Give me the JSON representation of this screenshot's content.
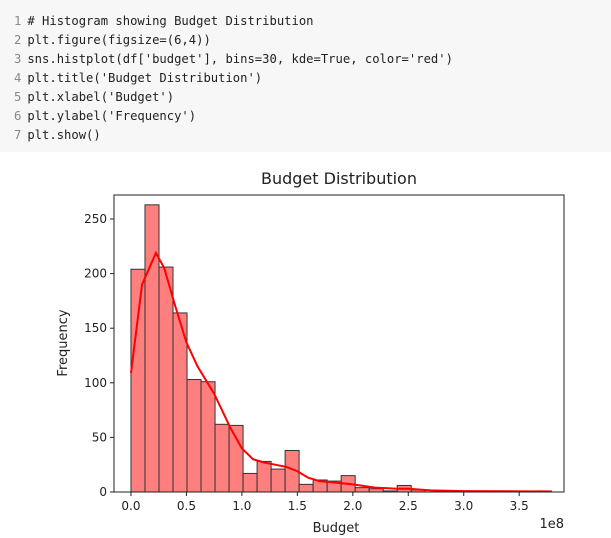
{
  "code_cell": {
    "lines": [
      "# Histogram showing Budget Distribution",
      "plt.figure(figsize=(6,4))",
      "sns.histplot(df['budget'], bins=30, kde=True, color='red')",
      "plt.title('Budget Distribution')",
      "plt.xlabel('Budget')",
      "plt.ylabel('Frequency')",
      "plt.show()"
    ],
    "line_numbers": [
      "1",
      "2",
      "3",
      "4",
      "5",
      "6",
      "7"
    ]
  },
  "chart_data": {
    "type": "bar",
    "title": "Budget Distribution",
    "xlabel": "Budget",
    "ylabel": "Frequency",
    "x_offset_label": "1e8",
    "bins": 30,
    "bin_range": [
      0,
      3.79
    ],
    "values": [
      204,
      263,
      206,
      164,
      103,
      101,
      62,
      61,
      17,
      28,
      21,
      38,
      7,
      11,
      10,
      15,
      4,
      3,
      1,
      6,
      2,
      0,
      0,
      0,
      0,
      0,
      0,
      0,
      0,
      1
    ],
    "kde": {
      "x": [
        0,
        0.1,
        0.225,
        0.3,
        0.4,
        0.5,
        0.6,
        0.75,
        0.9,
        1.0,
        1.1,
        1.2,
        1.3,
        1.4,
        1.5,
        1.6,
        1.7,
        1.8,
        1.9,
        2.0,
        2.2,
        2.4,
        2.5,
        2.7,
        3.0,
        3.79
      ],
      "y": [
        109,
        190,
        219,
        205,
        170,
        137,
        115,
        90,
        58,
        40,
        30,
        27,
        25,
        23,
        19,
        13,
        10,
        9,
        8,
        7,
        4,
        3,
        3,
        1.5,
        0.8,
        0.5
      ]
    },
    "xlim": [
      -0.153,
      3.904
    ],
    "ylim": [
      0,
      272
    ],
    "xticks": [
      "0.0",
      "0.5",
      "1.0",
      "1.5",
      "2.0",
      "2.5",
      "3.0",
      "3.5"
    ],
    "yticks": [
      "0",
      "50",
      "100",
      "150",
      "200",
      "250"
    ],
    "grid": false,
    "colors": {
      "bar": "#ff7f7f",
      "edge": "#333333",
      "kde": "#ff0000"
    }
  }
}
